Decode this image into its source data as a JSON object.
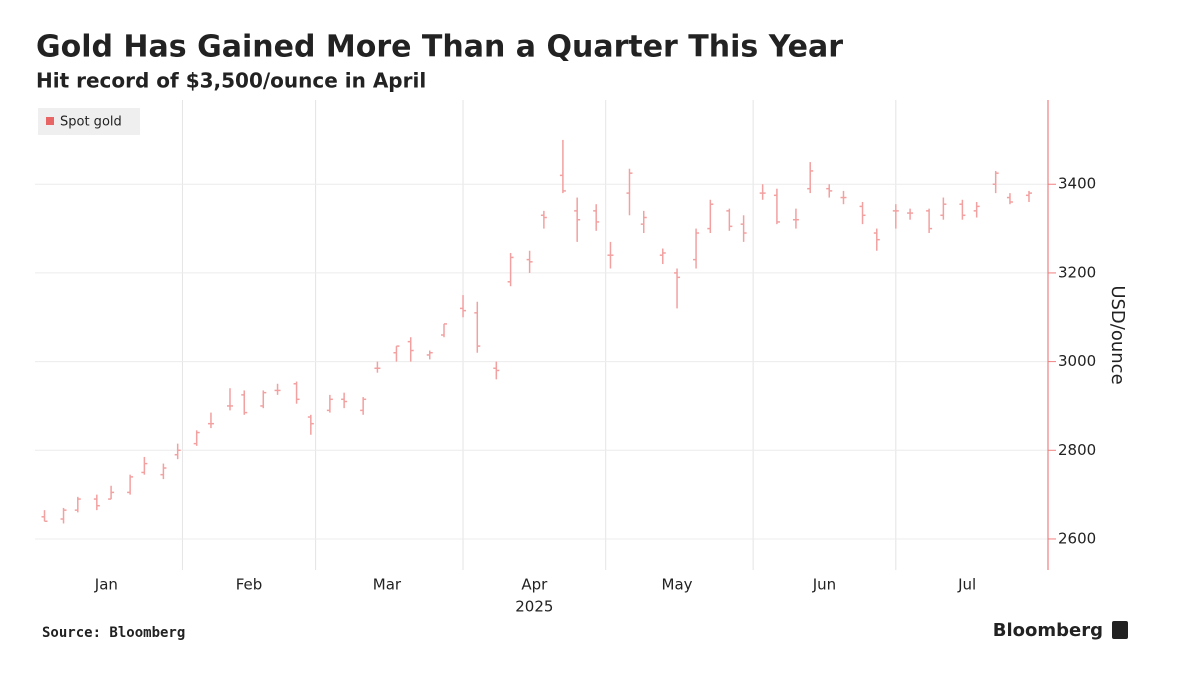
{
  "chart_data": {
    "type": "ohlc",
    "title": "Gold Has Gained More Than a Quarter This Year",
    "subtitle": "Hit record of $3,500/ounce in April",
    "ylabel": "USD/ounce",
    "source": "Source: Bloomberg",
    "brand": "Bloomberg",
    "legend_position": "top-left",
    "grid": true,
    "xlim": [
      "2025-01-01",
      "2025-08-02"
    ],
    "xgrid": [
      "2025-02-01",
      "2025-03-01",
      "2025-04-01",
      "2025-05-01",
      "2025-06-01",
      "2025-07-01"
    ],
    "xticks": [
      {
        "value": "2025-01-16",
        "label": "Jan"
      },
      {
        "value": "2025-02-15",
        "label": "Feb"
      },
      {
        "value": "2025-03-16",
        "label": "Mar"
      },
      {
        "value": "2025-04-16",
        "label": "Apr"
      },
      {
        "value": "2025-05-16",
        "label": "May"
      },
      {
        "value": "2025-06-16",
        "label": "Jun"
      },
      {
        "value": "2025-07-16",
        "label": "Jul"
      }
    ],
    "year_label": {
      "value": "2025-04-16",
      "label": "2025"
    },
    "ylim": [
      2530,
      3590
    ],
    "yticks": [
      2600,
      2800,
      3000,
      3200,
      3400
    ],
    "series": [
      {
        "name": "Spot gold",
        "color": "#f2a0a0",
        "legend_color": "#e86565",
        "x": [
          "2025-01-03",
          "2025-01-07",
          "2025-01-10",
          "2025-01-14",
          "2025-01-17",
          "2025-01-21",
          "2025-01-24",
          "2025-01-28",
          "2025-01-31",
          "2025-02-04",
          "2025-02-07",
          "2025-02-11",
          "2025-02-14",
          "2025-02-18",
          "2025-02-21",
          "2025-02-25",
          "2025-02-28",
          "2025-03-04",
          "2025-03-07",
          "2025-03-11",
          "2025-03-14",
          "2025-03-18",
          "2025-03-21",
          "2025-03-25",
          "2025-03-28",
          "2025-04-01",
          "2025-04-04",
          "2025-04-08",
          "2025-04-11",
          "2025-04-15",
          "2025-04-18",
          "2025-04-22",
          "2025-04-25",
          "2025-04-29",
          "2025-05-02",
          "2025-05-06",
          "2025-05-09",
          "2025-05-13",
          "2025-05-16",
          "2025-05-20",
          "2025-05-23",
          "2025-05-27",
          "2025-05-30",
          "2025-06-03",
          "2025-06-06",
          "2025-06-10",
          "2025-06-13",
          "2025-06-17",
          "2025-06-20",
          "2025-06-24",
          "2025-06-27",
          "2025-07-01",
          "2025-07-04",
          "2025-07-08",
          "2025-07-11",
          "2025-07-15",
          "2025-07-18",
          "2025-07-22",
          "2025-07-25",
          "2025-07-29"
        ],
        "open": [
          2650,
          2645,
          2665,
          2690,
          2690,
          2705,
          2750,
          2745,
          2790,
          2815,
          2860,
          2900,
          2925,
          2900,
          2935,
          2950,
          2875,
          2890,
          2915,
          2890,
          2985,
          3020,
          3045,
          3015,
          3060,
          3120,
          3110,
          2985,
          3180,
          3230,
          3330,
          3420,
          3340,
          3340,
          3240,
          3380,
          3310,
          3240,
          3200,
          3230,
          3300,
          3340,
          3310,
          3380,
          3375,
          3320,
          3390,
          3390,
          3370,
          3350,
          3290,
          3340,
          3335,
          3340,
          3330,
          3355,
          3340,
          3400,
          3370,
          3375
        ],
        "high": [
          2665,
          2670,
          2695,
          2700,
          2720,
          2745,
          2785,
          2770,
          2815,
          2845,
          2885,
          2940,
          2935,
          2935,
          2950,
          2955,
          2880,
          2925,
          2930,
          2920,
          3000,
          3035,
          3055,
          3025,
          3085,
          3150,
          3135,
          3000,
          3245,
          3250,
          3340,
          3500,
          3370,
          3355,
          3270,
          3435,
          3340,
          3255,
          3210,
          3300,
          3365,
          3345,
          3330,
          3400,
          3390,
          3345,
          3450,
          3400,
          3385,
          3360,
          3300,
          3355,
          3345,
          3345,
          3370,
          3365,
          3360,
          3430,
          3380,
          3385
        ],
        "low": [
          2640,
          2635,
          2660,
          2665,
          2690,
          2700,
          2745,
          2735,
          2780,
          2810,
          2850,
          2890,
          2880,
          2895,
          2925,
          2905,
          2835,
          2885,
          2895,
          2880,
          2975,
          3000,
          3000,
          3005,
          3055,
          3100,
          3020,
          2960,
          3170,
          3200,
          3300,
          3380,
          3270,
          3295,
          3210,
          3330,
          3290,
          3220,
          3120,
          3210,
          3290,
          3295,
          3270,
          3365,
          3310,
          3300,
          3380,
          3370,
          3355,
          3310,
          3250,
          3300,
          3320,
          3290,
          3320,
          3320,
          3325,
          3380,
          3355,
          3360
        ],
        "close": [
          2640,
          2665,
          2690,
          2675,
          2705,
          2740,
          2770,
          2760,
          2800,
          2840,
          2860,
          2900,
          2885,
          2930,
          2935,
          2915,
          2860,
          2915,
          2910,
          2915,
          2985,
          3035,
          3025,
          3020,
          3085,
          3115,
          3035,
          2980,
          3235,
          3225,
          3325,
          3385,
          3320,
          3315,
          3240,
          3425,
          3325,
          3245,
          3190,
          3290,
          3355,
          3305,
          3290,
          3380,
          3315,
          3320,
          3430,
          3385,
          3370,
          3330,
          3275,
          3340,
          3335,
          3300,
          3355,
          3330,
          3350,
          3425,
          3360,
          3380
        ]
      }
    ]
  }
}
